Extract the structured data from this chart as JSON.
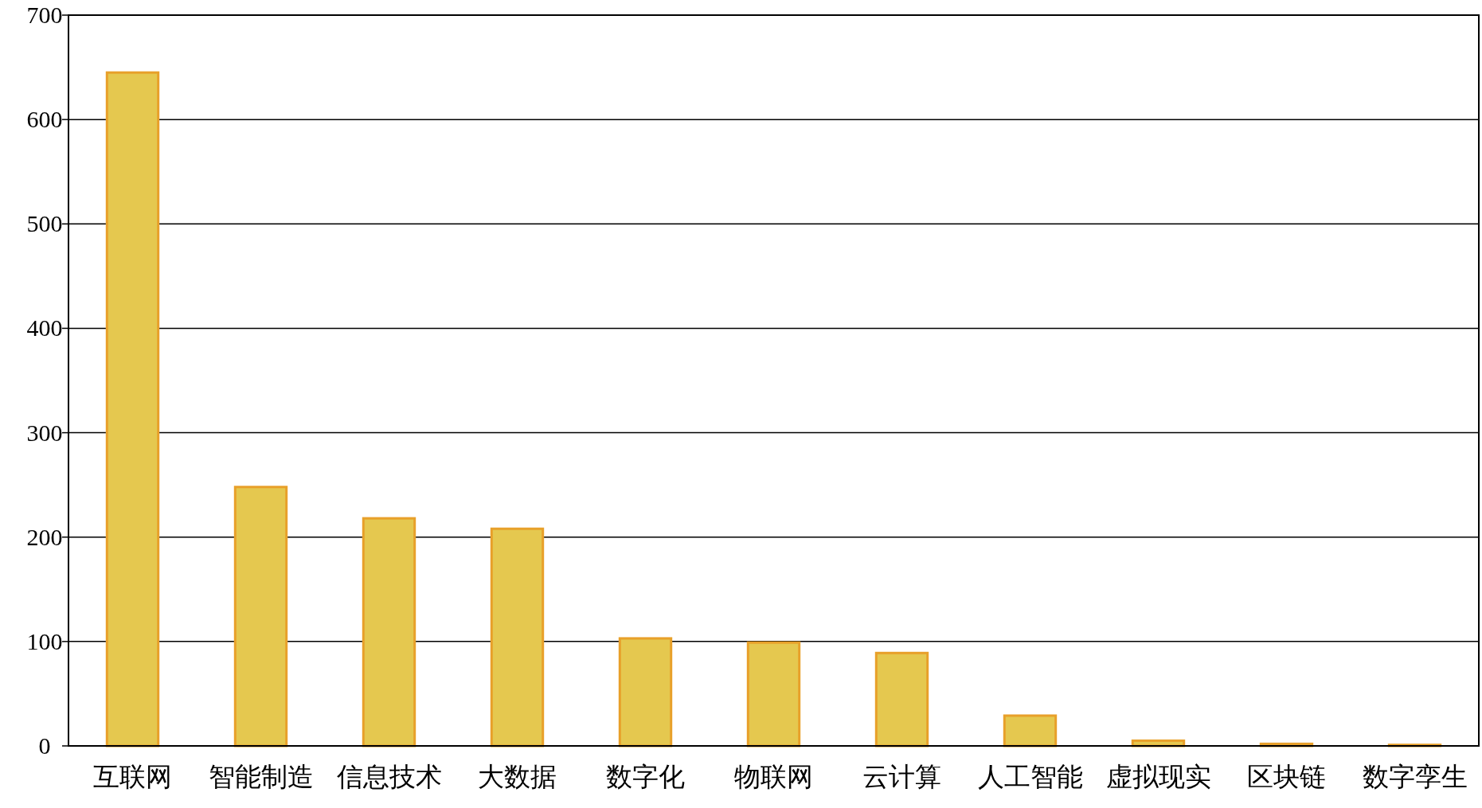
{
  "chart_data": {
    "type": "bar",
    "categories": [
      "互联网",
      "智能制造",
      "信息技术",
      "大数据",
      "数字化",
      "物联网",
      "云计算",
      "人工智能",
      "虚拟现实",
      "区块链",
      "数字孪生"
    ],
    "values": [
      645,
      248,
      218,
      208,
      103,
      99,
      89,
      29,
      5,
      2,
      1
    ],
    "color": "#e5c84f",
    "ylim": [
      0,
      700
    ],
    "yticks": [
      0,
      100,
      200,
      300,
      400,
      500,
      600,
      700
    ],
    "grid": "y"
  }
}
